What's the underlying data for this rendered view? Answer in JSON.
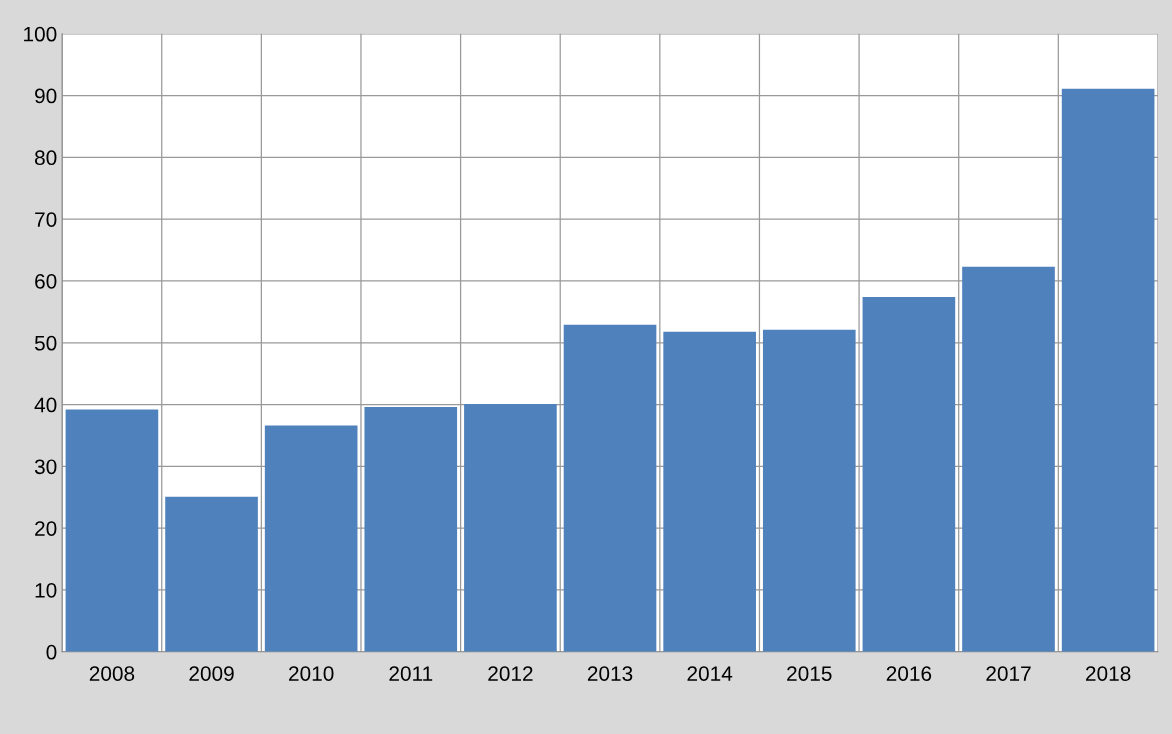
{
  "chart_data": {
    "type": "bar",
    "categories": [
      "2008",
      "2009",
      "2010",
      "2011",
      "2012",
      "2013",
      "2014",
      "2015",
      "2016",
      "2017",
      "2018"
    ],
    "values": [
      39.2,
      25.1,
      36.6,
      39.6,
      40.1,
      52.9,
      51.8,
      52.1,
      57.4,
      62.3,
      91.1
    ],
    "color": "#4f81bd",
    "ylim": [
      0,
      100
    ],
    "yticks": [
      0,
      10,
      20,
      30,
      40,
      50,
      60,
      70,
      80,
      90,
      100
    ],
    "grid": true
  }
}
